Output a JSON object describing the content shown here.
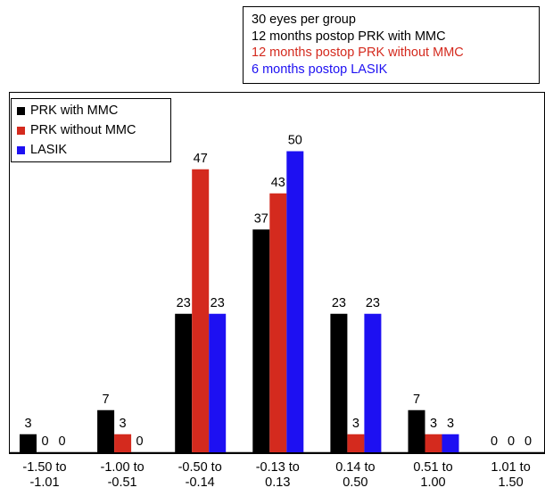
{
  "notes": {
    "lines": [
      {
        "text": "30 eyes per group",
        "color": "#000000"
      },
      {
        "text": "12 months postop PRK with MMC",
        "color": "#000000"
      },
      {
        "text": "12 months postop PRK without MMC",
        "color": "#d42a1e"
      },
      {
        "text": " 6 months postop LASIK",
        "color": "#1d10f2"
      }
    ]
  },
  "chart_data": {
    "type": "bar",
    "title": "",
    "xlabel": "",
    "ylabel": "",
    "ylim": [
      0,
      55
    ],
    "grid": false,
    "legend_position": "top-left",
    "categories": [
      [
        "-1.50 to",
        "-1.01"
      ],
      [
        "-1.00 to",
        "-0.51"
      ],
      [
        "-0.50 to",
        "-0.14"
      ],
      [
        "-0.13 to",
        "0.13"
      ],
      [
        "0.14 to",
        "0.50"
      ],
      [
        "0.51 to",
        "1.00"
      ],
      [
        "1.01 to",
        "1.50"
      ]
    ],
    "series": [
      {
        "name": "PRK with MMC",
        "color": "#000000",
        "values": [
          3,
          7,
          23,
          37,
          23,
          7,
          0
        ]
      },
      {
        "name": "PRK without MMC",
        "color": "#d42a1e",
        "values": [
          0,
          3,
          47,
          43,
          3,
          3,
          0
        ]
      },
      {
        "name": "LASIK",
        "color": "#1d10f2",
        "values": [
          0,
          0,
          23,
          50,
          23,
          3,
          0
        ]
      }
    ]
  }
}
